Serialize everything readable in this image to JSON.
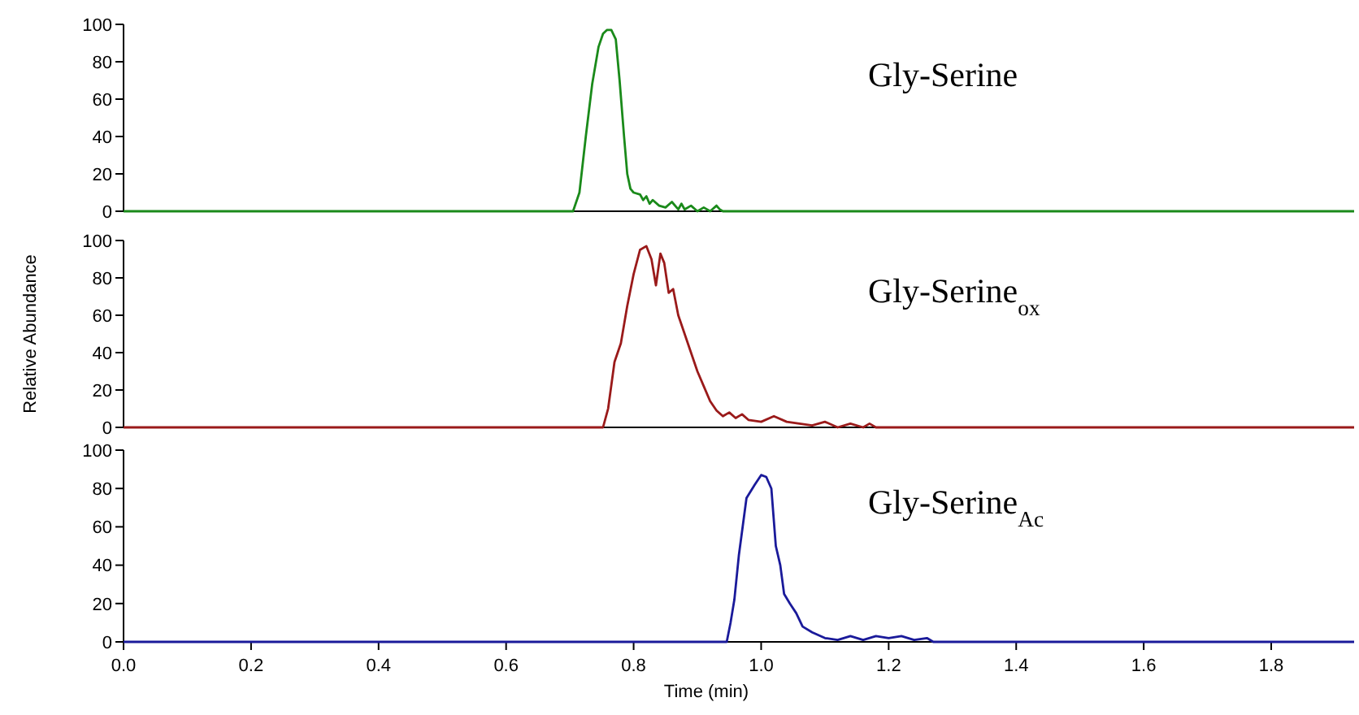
{
  "chart_data": [
    {
      "type": "line",
      "xlim": [
        0,
        1.93
      ],
      "ylim": [
        0,
        100
      ],
      "yticks": [
        0,
        20,
        40,
        60,
        80,
        100
      ],
      "tick_labels": "y",
      "series": [
        {
          "name": "Gly-Serine",
          "color": "#1a8a1a",
          "x": [
            0,
            0.705,
            0.715,
            0.725,
            0.735,
            0.745,
            0.752,
            0.758,
            0.765,
            0.772,
            0.778,
            0.785,
            0.79,
            0.795,
            0.8,
            0.81,
            0.815,
            0.82,
            0.825,
            0.83,
            0.84,
            0.85,
            0.86,
            0.87,
            0.875,
            0.88,
            0.89,
            0.9,
            0.91,
            0.92,
            0.93,
            0.935,
            0.94,
            1.93
          ],
          "values": [
            0,
            0,
            10,
            40,
            68,
            88,
            95,
            97,
            97,
            92,
            70,
            40,
            20,
            12,
            10,
            9,
            6,
            8,
            4,
            6,
            3,
            2,
            5,
            1,
            4,
            1,
            3,
            0,
            2,
            0,
            3,
            1,
            0,
            0
          ]
        }
      ]
    },
    {
      "type": "line",
      "xlim": [
        0,
        1.93
      ],
      "ylim": [
        0,
        100
      ],
      "yticks": [
        0,
        20,
        40,
        60,
        80,
        100
      ],
      "tick_labels": "y",
      "ylabel": "Relative Abundance",
      "series": [
        {
          "name": "Gly-Serine$_{ox}$",
          "color": "#9a1a1a",
          "x": [
            0,
            0.752,
            0.76,
            0.77,
            0.78,
            0.79,
            0.8,
            0.81,
            0.82,
            0.828,
            0.835,
            0.842,
            0.848,
            0.855,
            0.862,
            0.87,
            0.88,
            0.89,
            0.9,
            0.91,
            0.92,
            0.93,
            0.94,
            0.95,
            0.96,
            0.97,
            0.98,
            1.0,
            1.02,
            1.04,
            1.06,
            1.08,
            1.1,
            1.12,
            1.14,
            1.16,
            1.17,
            1.18,
            1.93
          ],
          "values": [
            0,
            0,
            10,
            35,
            45,
            65,
            82,
            95,
            97,
            90,
            76,
            93,
            88,
            72,
            74,
            60,
            50,
            40,
            30,
            22,
            14,
            9,
            6,
            8,
            5,
            7,
            4,
            3,
            6,
            3,
            2,
            1,
            3,
            0,
            2,
            0,
            2,
            0,
            0
          ]
        }
      ]
    },
    {
      "type": "line",
      "xlim": [
        0,
        1.93
      ],
      "ylim": [
        0,
        100
      ],
      "yticks": [
        0,
        20,
        40,
        60,
        80,
        100
      ],
      "xticks": [
        {
          "value": 0,
          "label": "0.0"
        },
        0.2,
        0.4,
        0.6,
        0.8,
        {
          "value": 1,
          "label": "1.0"
        },
        1.2,
        1.4,
        1.6,
        1.8
      ],
      "xlabel": "Time (min)",
      "series": [
        {
          "name": "Gly-Serine$_{Ac}$",
          "color": "#1a1a9a",
          "x": [
            0,
            0.946,
            0.952,
            0.958,
            0.965,
            0.977,
            0.99,
            1.0,
            1.008,
            1.016,
            1.023,
            1.03,
            1.036,
            1.045,
            1.055,
            1.065,
            1.08,
            1.1,
            1.12,
            1.14,
            1.16,
            1.18,
            1.2,
            1.22,
            1.24,
            1.26,
            1.27,
            1.28,
            1.93
          ],
          "values": [
            0,
            0,
            10,
            22,
            45,
            75,
            82,
            87,
            86,
            80,
            50,
            40,
            25,
            20,
            15,
            8,
            5,
            2,
            1,
            3,
            1,
            3,
            2,
            3,
            1,
            2,
            0,
            0,
            0
          ]
        }
      ]
    }
  ]
}
